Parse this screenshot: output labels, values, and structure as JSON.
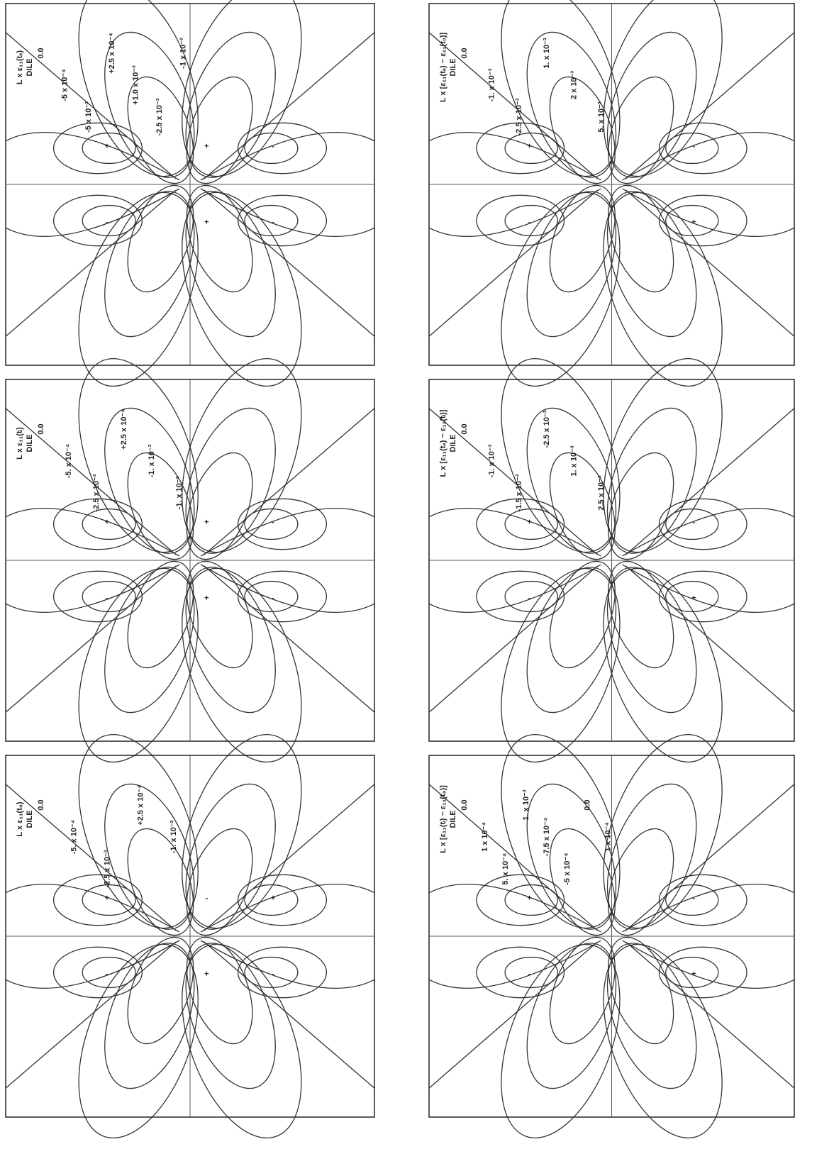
{
  "panels": [
    {
      "title": [
        "L x ε₁₁(tₑ)",
        "DILE"
      ],
      "labels": [
        "0.0",
        "-5 x 10⁻⁴",
        "-5 x 10⁻³",
        "+2.5 x 10⁻⁴",
        "+1.0 x 10⁻³",
        "-2.5 x 10⁻³",
        "-1 x 10⁻²"
      ],
      "signs": [
        "+",
        "+",
        "-",
        "-",
        "+",
        "-"
      ]
    },
    {
      "title": [
        "L x [ε₁₁(tₑ) − ε₁₁(t₀)]",
        "DILE"
      ],
      "labels": [
        "0.0",
        "-1. x 10⁻³",
        "-2.5 x 10⁻³",
        "1. x 10⁻³",
        "2 x 10⁻³",
        "5. x 10⁻³"
      ],
      "signs": [
        "+",
        "-",
        "-",
        "+"
      ]
    },
    {
      "title": [
        "L x ε₁₁(tᵢ)",
        "DILE"
      ],
      "labels": [
        "0.0",
        "-5. x 10⁻⁴",
        "-2.5 x 10⁻³",
        "+2.5 x 10⁻⁴",
        "-1. x 10⁻³",
        "-1. x 10⁻²"
      ],
      "signs": [
        "+",
        "+",
        "-",
        "-",
        "+",
        "-"
      ]
    },
    {
      "title": [
        "L x [ε₁₁(tₑ) − ε₁₁(tᵢ)]",
        "DILE"
      ],
      "labels": [
        "0.0",
        "-1. x 10⁻³",
        "-1.5 x 10⁻³",
        "-2.5 x 10⁻³",
        "1. x 10⁻³",
        "2.5 x 10⁻³"
      ],
      "signs": [
        "+",
        "-",
        "-",
        "+"
      ]
    },
    {
      "title": [
        "L x ε₁₁(t₀)",
        "DILE"
      ],
      "labels": [
        "0.0",
        "-5. x 10⁻⁴",
        "-2.5 x 10⁻³",
        "+2.5 x 10⁻⁴",
        "-1. x 10⁻²"
      ],
      "signs": [
        "+",
        "-",
        "+",
        "-",
        "+",
        "-"
      ]
    },
    {
      "title": [
        "L x [ε₁₁(tᵢ) − ε₁₁(t₀)]",
        "DILE"
      ],
      "labels": [
        "0.0",
        "1 x 10⁻⁴",
        "5. x 10⁻⁴",
        "1. x 10⁻³",
        "-7.5 x 10⁻⁴",
        "-5 x 10⁻⁴",
        "0.0",
        "1 x 10⁻⁴"
      ],
      "signs": [
        "+",
        "-",
        "-",
        "+"
      ]
    }
  ]
}
